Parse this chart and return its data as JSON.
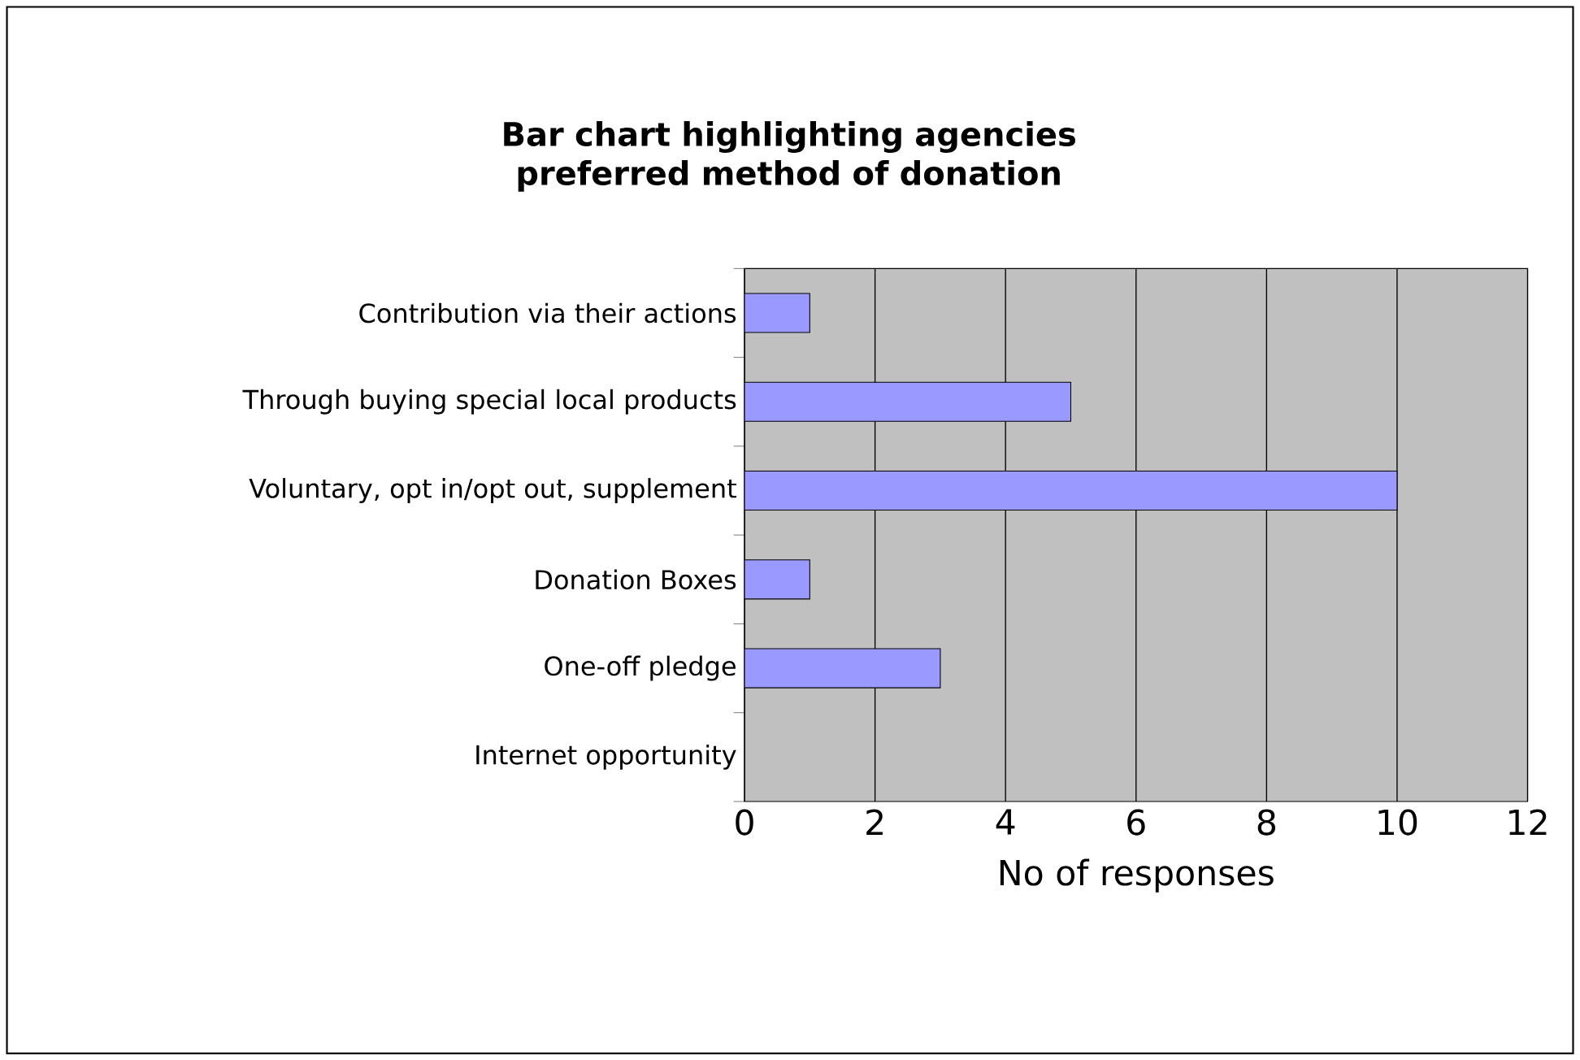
{
  "chart_data": {
    "type": "bar",
    "orientation": "horizontal",
    "title": "Bar chart highlighting agencies preferred method of donation",
    "categories": [
      "Contribution via their actions",
      "Through buying special local products",
      "Voluntary, opt in/opt out, supplement",
      "Donation Boxes",
      "One-off pledge",
      "Internet opportunity"
    ],
    "values": [
      1,
      5,
      10,
      1,
      3,
      0
    ],
    "color": "#9999ff",
    "xlim": [
      0,
      12
    ],
    "xticks": [
      0,
      2,
      4,
      6,
      8,
      10,
      12
    ],
    "xlabel": "No of responses",
    "grid": "x"
  }
}
